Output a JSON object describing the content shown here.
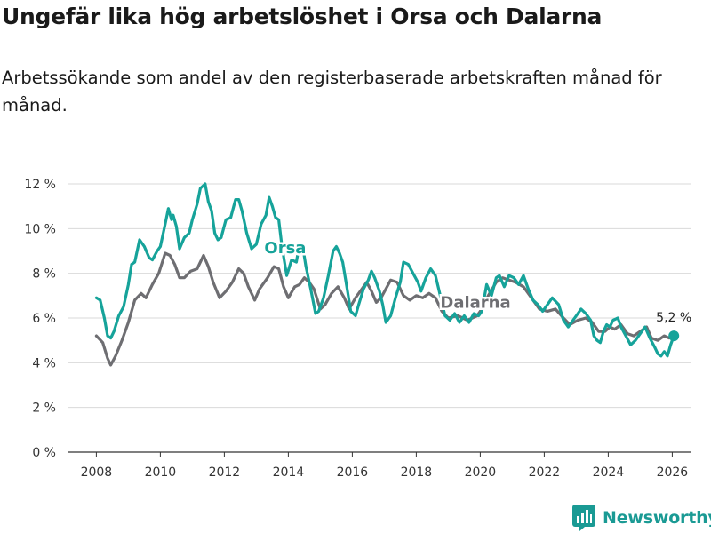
{
  "title": "Ungefär lika hög arbetslöshet i Orsa och Dalarna",
  "subtitle": "Arbetssökande som andel av den registerbaserade arbetskraften månad för månad.",
  "brand": {
    "name": "Newsworthy"
  },
  "colors": {
    "orsa": "#16a39a",
    "dalarna": "#6e6e72",
    "grid": "#d9d9d9",
    "axis": "#333333",
    "brand": "#1a9a94"
  },
  "chart_data": {
    "type": "line",
    "title": "Ungefär lika hög arbetslöshet i Orsa och Dalarna",
    "xlabel": "",
    "ylabel": "",
    "xlim": [
      2007.1,
      2026.6
    ],
    "ylim": [
      0,
      12
    ],
    "grid": true,
    "x_ticks": [
      2008,
      2010,
      2012,
      2014,
      2016,
      2018,
      2020,
      2022,
      2024,
      2026
    ],
    "x_tick_labels": [
      "2008",
      "2010",
      "2012",
      "2014",
      "2016",
      "2018",
      "2020",
      "2022",
      "2024",
      "2026"
    ],
    "y_ticks": [
      0,
      2,
      4,
      6,
      8,
      10,
      12
    ],
    "y_tick_labels": [
      "0 %",
      "2 %",
      "4 %",
      "6 %",
      "8 %",
      "10 %",
      "12 %"
    ],
    "end_label": "5,2 %",
    "series": [
      {
        "name": "Dalarna",
        "label": "Dalarna",
        "points": [
          [
            2008.0,
            5.2
          ],
          [
            2008.2,
            4.9
          ],
          [
            2008.35,
            4.2
          ],
          [
            2008.45,
            3.9
          ],
          [
            2008.6,
            4.3
          ],
          [
            2008.8,
            5.0
          ],
          [
            2009.0,
            5.8
          ],
          [
            2009.2,
            6.8
          ],
          [
            2009.4,
            7.1
          ],
          [
            2009.55,
            6.9
          ],
          [
            2009.75,
            7.5
          ],
          [
            2009.95,
            8.0
          ],
          [
            2010.15,
            8.9
          ],
          [
            2010.3,
            8.8
          ],
          [
            2010.45,
            8.4
          ],
          [
            2010.6,
            7.8
          ],
          [
            2010.75,
            7.8
          ],
          [
            2010.95,
            8.1
          ],
          [
            2011.15,
            8.2
          ],
          [
            2011.35,
            8.8
          ],
          [
            2011.5,
            8.3
          ],
          [
            2011.65,
            7.6
          ],
          [
            2011.85,
            6.9
          ],
          [
            2012.05,
            7.2
          ],
          [
            2012.25,
            7.6
          ],
          [
            2012.45,
            8.2
          ],
          [
            2012.6,
            8.0
          ],
          [
            2012.75,
            7.4
          ],
          [
            2012.95,
            6.8
          ],
          [
            2013.1,
            7.3
          ],
          [
            2013.35,
            7.8
          ],
          [
            2013.55,
            8.3
          ],
          [
            2013.7,
            8.2
          ],
          [
            2013.85,
            7.4
          ],
          [
            2014.0,
            6.9
          ],
          [
            2014.2,
            7.4
          ],
          [
            2014.35,
            7.5
          ],
          [
            2014.5,
            7.8
          ],
          [
            2014.65,
            7.6
          ],
          [
            2014.8,
            7.3
          ],
          [
            2015.0,
            6.4
          ],
          [
            2015.15,
            6.6
          ],
          [
            2015.35,
            7.1
          ],
          [
            2015.55,
            7.4
          ],
          [
            2015.75,
            6.9
          ],
          [
            2015.9,
            6.4
          ],
          [
            2016.1,
            6.9
          ],
          [
            2016.3,
            7.3
          ],
          [
            2016.45,
            7.6
          ],
          [
            2016.6,
            7.2
          ],
          [
            2016.75,
            6.7
          ],
          [
            2016.9,
            6.9
          ],
          [
            2017.05,
            7.3
          ],
          [
            2017.2,
            7.7
          ],
          [
            2017.4,
            7.6
          ],
          [
            2017.6,
            7.0
          ],
          [
            2017.8,
            6.8
          ],
          [
            2018.0,
            7.0
          ],
          [
            2018.2,
            6.9
          ],
          [
            2018.4,
            7.1
          ],
          [
            2018.6,
            6.9
          ],
          [
            2018.8,
            6.3
          ],
          [
            2019.0,
            6.0
          ],
          [
            2019.3,
            6.1
          ],
          [
            2019.6,
            5.9
          ],
          [
            2019.9,
            6.1
          ],
          [
            2020.0,
            6.3
          ],
          [
            2020.25,
            7.0
          ],
          [
            2020.5,
            7.6
          ],
          [
            2020.7,
            7.8
          ],
          [
            2020.9,
            7.7
          ],
          [
            2021.1,
            7.6
          ],
          [
            2021.35,
            7.4
          ],
          [
            2021.6,
            6.9
          ],
          [
            2021.85,
            6.4
          ],
          [
            2022.1,
            6.3
          ],
          [
            2022.35,
            6.4
          ],
          [
            2022.6,
            6.0
          ],
          [
            2022.8,
            5.7
          ],
          [
            2023.05,
            5.9
          ],
          [
            2023.3,
            6.0
          ],
          [
            2023.5,
            5.8
          ],
          [
            2023.7,
            5.4
          ],
          [
            2023.9,
            5.4
          ],
          [
            2024.05,
            5.6
          ],
          [
            2024.2,
            5.5
          ],
          [
            2024.4,
            5.7
          ],
          [
            2024.6,
            5.3
          ],
          [
            2024.8,
            5.2
          ],
          [
            2025.0,
            5.4
          ],
          [
            2025.2,
            5.6
          ],
          [
            2025.35,
            5.1
          ],
          [
            2025.55,
            5.0
          ],
          [
            2025.75,
            5.2
          ],
          [
            2025.9,
            5.1
          ],
          [
            2026.05,
            5.2
          ]
        ]
      },
      {
        "name": "Orsa",
        "label": "Orsa",
        "points": [
          [
            2008.0,
            6.9
          ],
          [
            2008.12,
            6.8
          ],
          [
            2008.25,
            6.0
          ],
          [
            2008.35,
            5.2
          ],
          [
            2008.45,
            5.1
          ],
          [
            2008.55,
            5.4
          ],
          [
            2008.7,
            6.1
          ],
          [
            2008.85,
            6.5
          ],
          [
            2009.0,
            7.5
          ],
          [
            2009.1,
            8.4
          ],
          [
            2009.2,
            8.5
          ],
          [
            2009.35,
            9.5
          ],
          [
            2009.5,
            9.2
          ],
          [
            2009.65,
            8.7
          ],
          [
            2009.75,
            8.6
          ],
          [
            2009.9,
            9.0
          ],
          [
            2010.0,
            9.2
          ],
          [
            2010.15,
            10.2
          ],
          [
            2010.25,
            10.9
          ],
          [
            2010.35,
            10.4
          ],
          [
            2010.4,
            10.6
          ],
          [
            2010.5,
            10.1
          ],
          [
            2010.6,
            9.1
          ],
          [
            2010.75,
            9.6
          ],
          [
            2010.9,
            9.8
          ],
          [
            2011.0,
            10.4
          ],
          [
            2011.15,
            11.1
          ],
          [
            2011.25,
            11.8
          ],
          [
            2011.4,
            12.0
          ],
          [
            2011.5,
            11.2
          ],
          [
            2011.6,
            10.8
          ],
          [
            2011.7,
            9.8
          ],
          [
            2011.8,
            9.5
          ],
          [
            2011.9,
            9.6
          ],
          [
            2012.05,
            10.4
          ],
          [
            2012.2,
            10.5
          ],
          [
            2012.35,
            11.3
          ],
          [
            2012.45,
            11.3
          ],
          [
            2012.55,
            10.8
          ],
          [
            2012.7,
            9.8
          ],
          [
            2012.85,
            9.1
          ],
          [
            2013.0,
            9.3
          ],
          [
            2013.15,
            10.2
          ],
          [
            2013.3,
            10.6
          ],
          [
            2013.4,
            11.4
          ],
          [
            2013.5,
            11.0
          ],
          [
            2013.6,
            10.5
          ],
          [
            2013.7,
            10.4
          ],
          [
            2013.8,
            9.2
          ],
          [
            2013.95,
            7.9
          ],
          [
            2014.1,
            8.6
          ],
          [
            2014.25,
            8.5
          ],
          [
            2014.35,
            9.3
          ],
          [
            2014.45,
            9.2
          ],
          [
            2014.55,
            8.3
          ],
          [
            2014.7,
            7.3
          ],
          [
            2014.85,
            6.2
          ],
          [
            2014.95,
            6.3
          ],
          [
            2015.1,
            6.9
          ],
          [
            2015.25,
            7.9
          ],
          [
            2015.4,
            9.0
          ],
          [
            2015.5,
            9.2
          ],
          [
            2015.6,
            8.9
          ],
          [
            2015.7,
            8.5
          ],
          [
            2015.85,
            7.2
          ],
          [
            2015.95,
            6.3
          ],
          [
            2016.1,
            6.1
          ],
          [
            2016.2,
            6.6
          ],
          [
            2016.35,
            7.3
          ],
          [
            2016.5,
            7.7
          ],
          [
            2016.6,
            8.1
          ],
          [
            2016.7,
            7.8
          ],
          [
            2016.85,
            7.2
          ],
          [
            2016.95,
            6.6
          ],
          [
            2017.05,
            5.8
          ],
          [
            2017.2,
            6.1
          ],
          [
            2017.35,
            6.9
          ],
          [
            2017.5,
            7.6
          ],
          [
            2017.6,
            8.5
          ],
          [
            2017.75,
            8.4
          ],
          [
            2017.9,
            8.0
          ],
          [
            2018.05,
            7.6
          ],
          [
            2018.15,
            7.2
          ],
          [
            2018.3,
            7.8
          ],
          [
            2018.45,
            8.2
          ],
          [
            2018.6,
            7.9
          ],
          [
            2018.75,
            7.0
          ],
          [
            2018.9,
            6.1
          ],
          [
            2019.05,
            5.9
          ],
          [
            2019.2,
            6.2
          ],
          [
            2019.35,
            5.8
          ],
          [
            2019.5,
            6.1
          ],
          [
            2019.65,
            5.8
          ],
          [
            2019.8,
            6.2
          ],
          [
            2019.95,
            6.1
          ],
          [
            2020.05,
            6.3
          ],
          [
            2020.2,
            7.5
          ],
          [
            2020.35,
            7.0
          ],
          [
            2020.5,
            7.8
          ],
          [
            2020.6,
            7.9
          ],
          [
            2020.75,
            7.4
          ],
          [
            2020.9,
            7.9
          ],
          [
            2021.05,
            7.8
          ],
          [
            2021.2,
            7.5
          ],
          [
            2021.35,
            7.9
          ],
          [
            2021.5,
            7.3
          ],
          [
            2021.65,
            6.8
          ],
          [
            2021.8,
            6.6
          ],
          [
            2021.95,
            6.3
          ],
          [
            2022.1,
            6.6
          ],
          [
            2022.25,
            6.9
          ],
          [
            2022.45,
            6.6
          ],
          [
            2022.6,
            5.9
          ],
          [
            2022.75,
            5.6
          ],
          [
            2022.9,
            5.9
          ],
          [
            2023.05,
            6.2
          ],
          [
            2023.15,
            6.4
          ],
          [
            2023.3,
            6.2
          ],
          [
            2023.45,
            5.9
          ],
          [
            2023.55,
            5.2
          ],
          [
            2023.65,
            5.0
          ],
          [
            2023.75,
            4.9
          ],
          [
            2023.85,
            5.4
          ],
          [
            2023.95,
            5.7
          ],
          [
            2024.05,
            5.6
          ],
          [
            2024.15,
            5.9
          ],
          [
            2024.3,
            6.0
          ],
          [
            2024.4,
            5.6
          ],
          [
            2024.55,
            5.2
          ],
          [
            2024.7,
            4.8
          ],
          [
            2024.85,
            5.0
          ],
          [
            2025.0,
            5.3
          ],
          [
            2025.15,
            5.6
          ],
          [
            2025.3,
            5.1
          ],
          [
            2025.45,
            4.7
          ],
          [
            2025.55,
            4.4
          ],
          [
            2025.65,
            4.3
          ],
          [
            2025.75,
            4.5
          ],
          [
            2025.85,
            4.3
          ],
          [
            2025.95,
            4.8
          ],
          [
            2026.05,
            5.2
          ]
        ]
      }
    ]
  }
}
